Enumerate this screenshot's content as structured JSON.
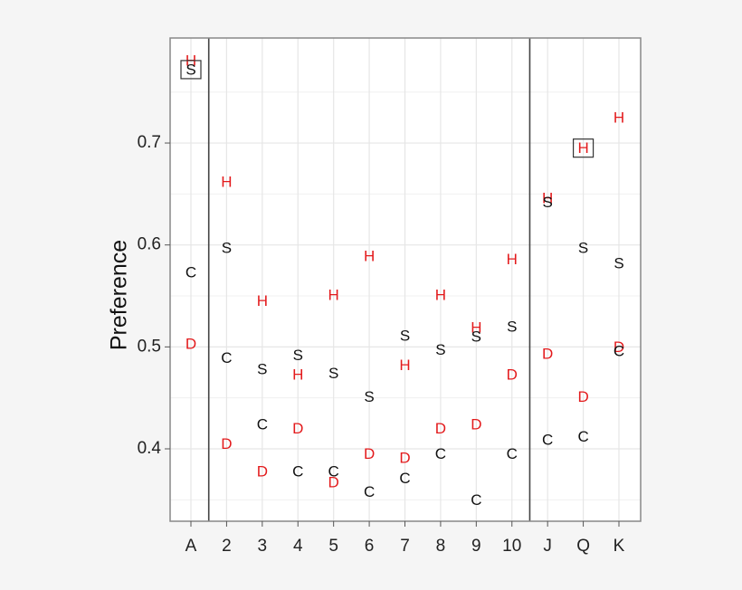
{
  "chart_data": {
    "type": "scatter",
    "title": "",
    "xlabel": "",
    "ylabel": "Preference",
    "ylim": [
      0.329,
      0.803
    ],
    "yticks": [
      0.4,
      0.5,
      0.6,
      0.7
    ],
    "ytick_labels": [
      "0.4",
      "0.5",
      "0.6",
      "0.7"
    ],
    "grid": true,
    "legend": "none",
    "marker_type": "text-glyph",
    "categories": [
      "A",
      "2",
      "3",
      "4",
      "5",
      "6",
      "7",
      "8",
      "9",
      "10",
      "J",
      "Q",
      "K"
    ],
    "separators_after": [
      "A",
      "10"
    ],
    "colors": {
      "S": "#111111",
      "C": "#111111",
      "H": "#e31a1c",
      "D": "#e31a1c"
    },
    "series": [
      {
        "name": "S",
        "values": [
          0.772,
          0.597,
          0.478,
          0.492,
          0.474,
          0.451,
          0.511,
          0.497,
          0.51,
          0.52,
          0.642,
          0.597,
          0.582
        ]
      },
      {
        "name": "H",
        "values": [
          0.781,
          0.662,
          0.545,
          0.473,
          0.551,
          0.589,
          0.482,
          0.551,
          0.519,
          0.586,
          0.646,
          0.695,
          0.725
        ]
      },
      {
        "name": "C",
        "values": [
          0.573,
          0.489,
          0.424,
          0.378,
          0.378,
          0.358,
          0.371,
          0.395,
          0.35,
          0.395,
          0.409,
          0.412,
          0.496
        ]
      },
      {
        "name": "D",
        "values": [
          0.503,
          0.405,
          0.378,
          0.42,
          0.367,
          0.395,
          0.391,
          0.42,
          0.424,
          0.473,
          0.493,
          0.451,
          0.5
        ]
      }
    ],
    "highlighted": [
      {
        "series": "S",
        "category": "A"
      },
      {
        "series": "H",
        "category": "Q"
      }
    ]
  }
}
